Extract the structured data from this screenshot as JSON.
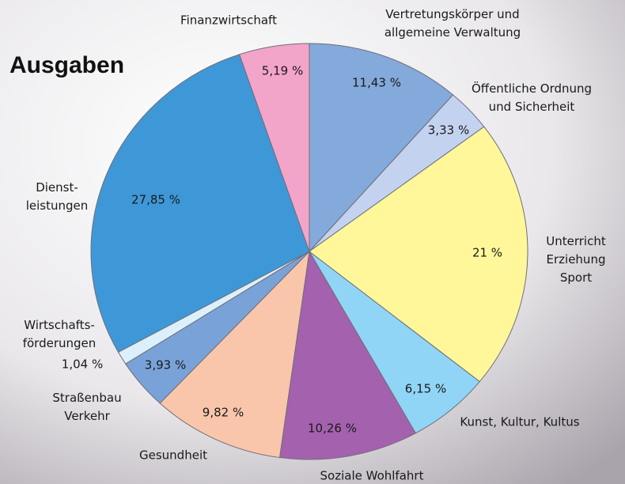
{
  "chart_data": {
    "type": "pie",
    "title": "Ausgaben",
    "categories": [
      "Vertretungskörper und\nallgemeine Verwaltung",
      "Öffentliche Ordnung\nund Sicherheit",
      "Unterricht\nErziehung\nSport",
      "Kunst, Kultur, Kultus",
      "Soziale Wohlfahrt",
      "Gesundheit",
      "Straßenbau\nVerkehr",
      "Wirtschafts-\nförderungen",
      "Dienst-\nleistungen",
      "Finanzwirtschaft"
    ],
    "values": [
      11.43,
      3.33,
      21,
      6.15,
      10.26,
      9.82,
      3.93,
      1.04,
      27.85,
      5.19
    ],
    "value_labels": [
      "11,43 %",
      "3,33 %",
      "21 %",
      "6,15 %",
      "10,26 %",
      "9,82 %",
      "3,93 %",
      "1,04 %",
      "27,85 %",
      "5,19 %"
    ],
    "colors": [
      "#84a9db",
      "#c3d2ef",
      "#fff79a",
      "#90d5f6",
      "#a461ae",
      "#f9c6ab",
      "#79a3d8",
      "#dcf0fb",
      "#3e98d8",
      "#f3a4c9"
    ]
  }
}
